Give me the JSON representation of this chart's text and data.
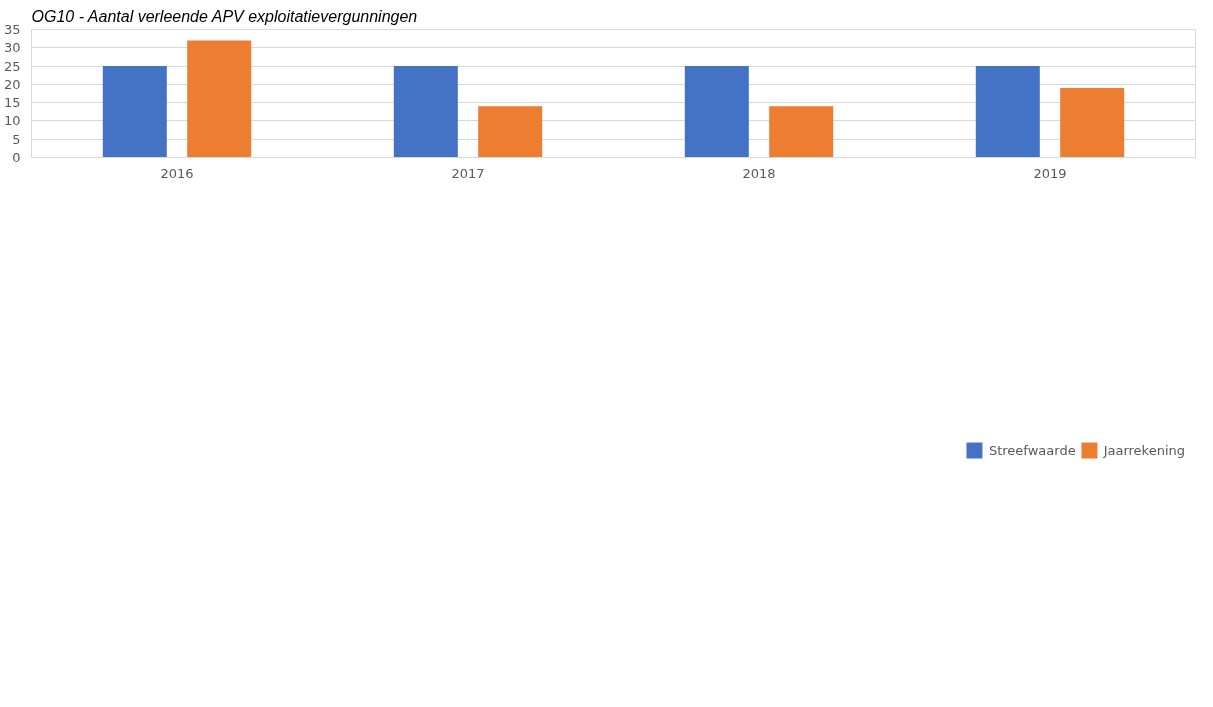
{
  "chart_data": {
    "type": "bar",
    "title": "OG10 - Aantal verleende APV exploitatievergunningen",
    "categories": [
      "2016",
      "2017",
      "2018",
      "2019"
    ],
    "series": [
      {
        "name": "Streefwaarde",
        "color": "#4472c4",
        "values": [
          25,
          25,
          25,
          25
        ]
      },
      {
        "name": "Jaarrekening",
        "color": "#ed7d31",
        "values": [
          32,
          14,
          14,
          19
        ]
      }
    ],
    "ylim": [
      0,
      35
    ],
    "yticks": [
      0,
      5,
      10,
      15,
      20,
      25,
      30,
      35
    ],
    "grid": "y",
    "legend": "bottom"
  }
}
